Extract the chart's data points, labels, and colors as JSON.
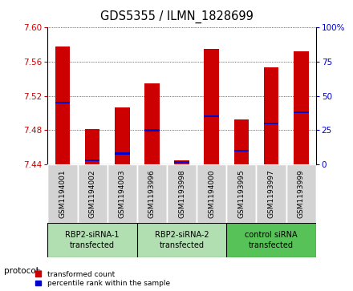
{
  "title": "GDS5355 / ILMN_1828699",
  "samples": [
    "GSM1194001",
    "GSM1194002",
    "GSM1194003",
    "GSM1193996",
    "GSM1193998",
    "GSM1194000",
    "GSM1193995",
    "GSM1193997",
    "GSM1193999"
  ],
  "transformed_count": [
    7.578,
    7.481,
    7.507,
    7.535,
    7.445,
    7.575,
    7.493,
    7.554,
    7.572
  ],
  "percentile_rank": [
    45,
    3,
    8,
    25,
    2,
    35,
    10,
    30,
    38
  ],
  "bar_bottom": 7.44,
  "ylim_left": [
    7.44,
    7.6
  ],
  "ylim_right": [
    0,
    100
  ],
  "yticks_left": [
    7.44,
    7.48,
    7.52,
    7.56,
    7.6
  ],
  "yticks_right": [
    0,
    25,
    50,
    75,
    100
  ],
  "groups": [
    {
      "label": "RBP2-siRNA-1\ntransfected",
      "indices": [
        0,
        1,
        2
      ]
    },
    {
      "label": "RBP2-siRNA-2\ntransfected",
      "indices": [
        3,
        4,
        5
      ]
    },
    {
      "label": "control siRNA\ntransfected",
      "indices": [
        6,
        7,
        8
      ]
    }
  ],
  "group_colors": [
    "#b2dfb2",
    "#b2dfb2",
    "#57c257"
  ],
  "bar_color_red": "#CC0000",
  "bar_color_blue": "#0000CC",
  "bar_width": 0.5,
  "tick_color_left": "#CC0000",
  "tick_color_right": "#0000CC",
  "sample_cell_color": "#D3D3D3",
  "protocol_label": "protocol",
  "legend_red": "transformed count",
  "legend_blue": "percentile rank within the sample"
}
